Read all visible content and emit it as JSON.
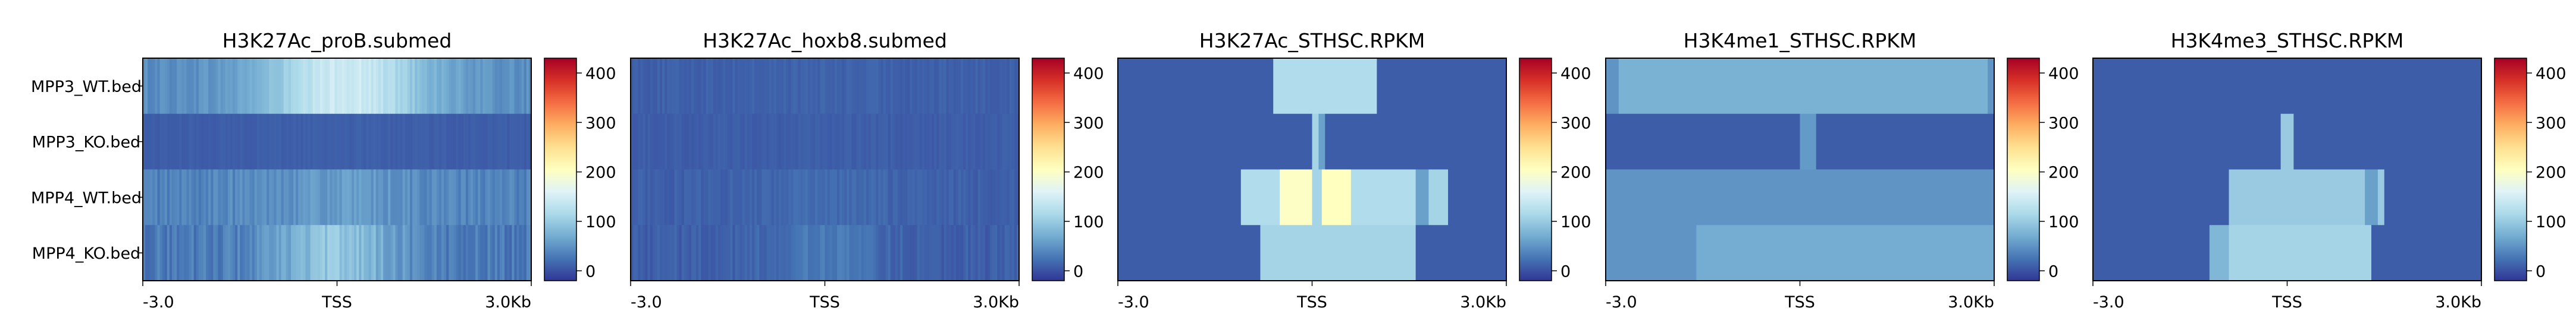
{
  "figure": {
    "colormap": "RdYlBu_r",
    "colormap_stops": [
      "#313695",
      "#4575b4",
      "#74add1",
      "#abd9e9",
      "#e0f3f8",
      "#ffffbf",
      "#fee090",
      "#fdae61",
      "#f46d43",
      "#d73027",
      "#a50026"
    ]
  },
  "chart_data": [
    {
      "type": "heatmap",
      "title": "H3K27Ac_proB.submed",
      "rows": [
        "MPP3_WT.bed",
        "MPP3_KO.bed",
        "MPP4_WT.bed",
        "MPP4_KO.bed"
      ],
      "xticks": [
        "-3.0",
        "TSS",
        "3.0Kb"
      ],
      "xrange_kb": [
        -3.0,
        3.0
      ],
      "colorbar": {
        "ticks": [
          0,
          100,
          200,
          300,
          400
        ],
        "range": [
          -20,
          430
        ]
      },
      "row_profiles": [
        {
          "base": 45,
          "peak": 145,
          "center": 0.05,
          "width": 0.9,
          "jitter": 10
        },
        {
          "base": 8,
          "peak": 10,
          "center": 0.0,
          "width": 1.0,
          "jitter": 3
        },
        {
          "base": 35,
          "peak": 55,
          "center": 0.0,
          "width": 1.0,
          "jitter": 12
        },
        {
          "base": 30,
          "peak": 95,
          "center": 0.0,
          "width": 0.7,
          "jitter": 15
        }
      ]
    },
    {
      "type": "heatmap",
      "title": "H3K27Ac_hoxb8.submed",
      "rows": [
        "MPP3_WT.bed",
        "MPP3_KO.bed",
        "MPP4_WT.bed",
        "MPP4_KO.bed"
      ],
      "xticks": [
        "-3.0",
        "TSS",
        "3.0Kb"
      ],
      "xrange_kb": [
        -3.0,
        3.0
      ],
      "colorbar": {
        "ticks": [
          0,
          100,
          200,
          300,
          400
        ],
        "range": [
          -20,
          430
        ]
      },
      "row_profiles": [
        {
          "base": 10,
          "peak": 12,
          "center": 0.0,
          "width": 1.0,
          "jitter": 5
        },
        {
          "base": 8,
          "peak": 9,
          "center": 0.0,
          "width": 1.0,
          "jitter": 4
        },
        {
          "base": 10,
          "peak": 18,
          "center": 0.0,
          "width": 0.8,
          "jitter": 6
        },
        {
          "base": 10,
          "peak": 30,
          "center": 0.0,
          "width": 0.6,
          "jitter": 8
        }
      ]
    },
    {
      "type": "heatmap",
      "title": "H3K27Ac_STHSC.RPKM",
      "rows": [
        "MPP3_WT.bed",
        "MPP3_KO.bed",
        "MPP4_WT.bed",
        "MPP4_KO.bed"
      ],
      "xticks": [
        "-3.0",
        "TSS",
        "3.0Kb"
      ],
      "xrange_kb": [
        -3.0,
        3.0
      ],
      "colorbar": {
        "ticks": [
          0,
          100,
          200,
          300,
          400
        ],
        "range": [
          -20,
          430
        ]
      },
      "segments": [
        [
          {
            "x0": -3.0,
            "x1": -0.6,
            "v": 8
          },
          {
            "x0": -0.6,
            "x1": 1.0,
            "v": 120
          },
          {
            "x0": 1.0,
            "x1": 3.0,
            "v": 8
          }
        ],
        [
          {
            "x0": -3.0,
            "x1": 0.0,
            "v": 8
          },
          {
            "x0": 0.0,
            "x1": 0.1,
            "v": 110
          },
          {
            "x0": 0.1,
            "x1": 0.2,
            "v": 60
          },
          {
            "x0": 0.2,
            "x1": 3.0,
            "v": 8
          }
        ],
        [
          {
            "x0": -3.0,
            "x1": -1.1,
            "v": 8
          },
          {
            "x0": -1.1,
            "x1": -0.5,
            "v": 120
          },
          {
            "x0": -0.5,
            "x1": 0.0,
            "v": 200
          },
          {
            "x0": 0.0,
            "x1": 0.15,
            "v": 110
          },
          {
            "x0": 0.15,
            "x1": 0.6,
            "v": 205
          },
          {
            "x0": 0.6,
            "x1": 1.6,
            "v": 120
          },
          {
            "x0": 1.6,
            "x1": 1.8,
            "v": 60
          },
          {
            "x0": 1.8,
            "x1": 2.1,
            "v": 110
          },
          {
            "x0": 2.1,
            "x1": 3.0,
            "v": 8
          }
        ],
        [
          {
            "x0": -3.0,
            "x1": -0.8,
            "v": 8
          },
          {
            "x0": -0.8,
            "x1": 1.6,
            "v": 110
          },
          {
            "x0": 1.6,
            "x1": 3.0,
            "v": 8
          }
        ]
      ]
    },
    {
      "type": "heatmap",
      "title": "H3K4me1_STHSC.RPKM",
      "rows": [
        "MPP3_WT.bed",
        "MPP3_KO.bed",
        "MPP4_WT.bed",
        "MPP4_KO.bed"
      ],
      "xticks": [
        "-3.0",
        "TSS",
        "3.0Kb"
      ],
      "xrange_kb": [
        -3.0,
        3.0
      ],
      "colorbar": {
        "ticks": [
          0,
          100,
          200,
          300,
          400
        ],
        "range": [
          -20,
          430
        ]
      },
      "segments": [
        [
          {
            "x0": -3.0,
            "x1": -2.8,
            "v": 50
          },
          {
            "x0": -2.8,
            "x1": 2.9,
            "v": 75
          },
          {
            "x0": 2.9,
            "x1": 3.0,
            "v": 50
          }
        ],
        [
          {
            "x0": -3.0,
            "x1": 0.0,
            "v": 8
          },
          {
            "x0": 0.0,
            "x1": 0.25,
            "v": 55
          },
          {
            "x0": 0.25,
            "x1": 3.0,
            "v": 8
          }
        ],
        [
          {
            "x0": -3.0,
            "x1": 3.0,
            "v": 50
          }
        ],
        [
          {
            "x0": -3.0,
            "x1": -1.6,
            "v": 50
          },
          {
            "x0": -1.6,
            "x1": 3.0,
            "v": 70
          }
        ]
      ]
    },
    {
      "type": "heatmap",
      "title": "H3K4me3_STHSC.RPKM",
      "rows": [
        "MPP3_WT.bed",
        "MPP3_KO.bed",
        "MPP4_WT.bed",
        "MPP4_KO.bed"
      ],
      "xticks": [
        "-3.0",
        "TSS",
        "3.0Kb"
      ],
      "xrange_kb": [
        -3.0,
        3.0
      ],
      "colorbar": {
        "ticks": [
          0,
          100,
          200,
          300,
          400
        ],
        "range": [
          -20,
          430
        ]
      },
      "segments": [
        [
          {
            "x0": -3.0,
            "x1": 3.0,
            "v": 8
          }
        ],
        [
          {
            "x0": -3.0,
            "x1": -0.1,
            "v": 8
          },
          {
            "x0": -0.1,
            "x1": 0.1,
            "v": 100
          },
          {
            "x0": 0.1,
            "x1": 3.0,
            "v": 8
          }
        ],
        [
          {
            "x0": -3.0,
            "x1": -0.9,
            "v": 8
          },
          {
            "x0": -0.9,
            "x1": 1.2,
            "v": 100
          },
          {
            "x0": 1.2,
            "x1": 1.4,
            "v": 60
          },
          {
            "x0": 1.4,
            "x1": 1.5,
            "v": 100
          },
          {
            "x0": 1.5,
            "x1": 3.0,
            "v": 8
          }
        ],
        [
          {
            "x0": -3.0,
            "x1": -1.2,
            "v": 8
          },
          {
            "x0": -1.2,
            "x1": -0.9,
            "v": 80
          },
          {
            "x0": -0.9,
            "x1": 1.3,
            "v": 110
          },
          {
            "x0": 1.3,
            "x1": 3.0,
            "v": 8
          }
        ]
      ]
    }
  ]
}
